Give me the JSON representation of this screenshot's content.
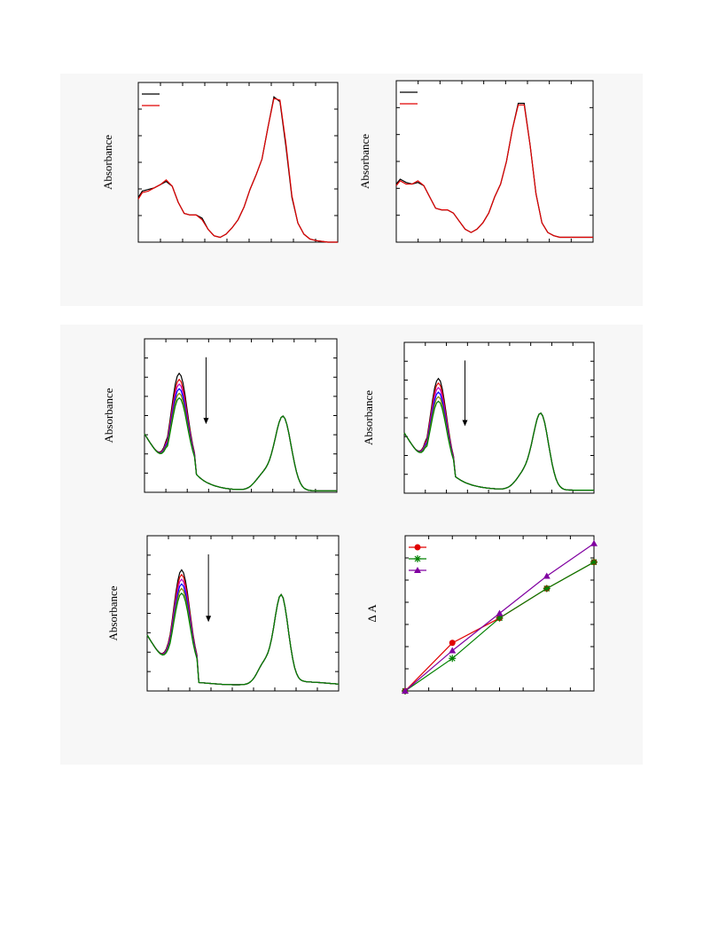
{
  "figure": {
    "background_color": "#f7f7f7",
    "panel_color": "#ffffff"
  },
  "chart_data": [
    {
      "id": "top-left",
      "type": "line",
      "title": "",
      "xlabel": "",
      "ylabel": "Absorbance",
      "xlim": [
        0,
        100
      ],
      "ylim": [
        0,
        1.0
      ],
      "legend": "top-left",
      "series": [
        {
          "color": "#000000",
          "x": [
            0,
            2,
            5,
            8,
            11,
            14,
            17,
            20,
            23,
            26,
            29,
            32,
            35,
            38,
            41,
            44,
            47,
            50,
            53,
            56,
            59,
            62,
            65,
            68,
            71,
            74,
            77,
            80,
            83,
            86,
            89,
            92,
            95,
            98,
            100
          ],
          "y": [
            0.28,
            0.32,
            0.33,
            0.34,
            0.36,
            0.38,
            0.35,
            0.25,
            0.18,
            0.17,
            0.17,
            0.15,
            0.08,
            0.04,
            0.03,
            0.05,
            0.09,
            0.14,
            0.22,
            0.33,
            0.42,
            0.52,
            0.72,
            0.91,
            0.88,
            0.6,
            0.28,
            0.12,
            0.05,
            0.02,
            0.01,
            0.005,
            0.0,
            0.0,
            0.0
          ]
        },
        {
          "color": "#e00000",
          "x": [
            0,
            2,
            5,
            8,
            11,
            14,
            17,
            20,
            23,
            26,
            29,
            32,
            35,
            38,
            41,
            44,
            47,
            50,
            53,
            56,
            59,
            62,
            65,
            68,
            71,
            74,
            77,
            80,
            83,
            86,
            89,
            92,
            95,
            98,
            100
          ],
          "y": [
            0.27,
            0.31,
            0.32,
            0.34,
            0.36,
            0.39,
            0.35,
            0.25,
            0.18,
            0.17,
            0.17,
            0.14,
            0.08,
            0.04,
            0.03,
            0.05,
            0.09,
            0.14,
            0.22,
            0.33,
            0.42,
            0.52,
            0.72,
            0.9,
            0.89,
            0.62,
            0.29,
            0.12,
            0.05,
            0.02,
            0.01,
            0.005,
            0.0,
            0.0,
            0.0
          ]
        }
      ]
    },
    {
      "id": "top-right",
      "type": "line",
      "title": "",
      "xlabel": "",
      "ylabel": "Absorbance",
      "xlim": [
        0,
        100
      ],
      "ylim": [
        0,
        1.0
      ],
      "legend": "top-left",
      "series": [
        {
          "color": "#000000",
          "x": [
            0,
            2,
            5,
            8,
            11,
            14,
            17,
            20,
            23,
            26,
            29,
            32,
            35,
            38,
            41,
            44,
            47,
            50,
            53,
            56,
            59,
            62,
            65,
            68,
            71,
            74,
            77,
            80,
            83,
            86,
            89,
            92,
            95,
            98,
            100
          ],
          "y": [
            0.36,
            0.39,
            0.37,
            0.36,
            0.37,
            0.35,
            0.28,
            0.21,
            0.2,
            0.2,
            0.18,
            0.13,
            0.08,
            0.06,
            0.08,
            0.12,
            0.18,
            0.28,
            0.36,
            0.5,
            0.7,
            0.86,
            0.86,
            0.6,
            0.3,
            0.12,
            0.06,
            0.04,
            0.03,
            0.03,
            0.03,
            0.03,
            0.03,
            0.03,
            0.03
          ]
        },
        {
          "color": "#e00000",
          "x": [
            0,
            2,
            5,
            8,
            11,
            14,
            17,
            20,
            23,
            26,
            29,
            32,
            35,
            38,
            41,
            44,
            47,
            50,
            53,
            56,
            59,
            62,
            65,
            68,
            71,
            74,
            77,
            80,
            83,
            86,
            89,
            92,
            95,
            98,
            100
          ],
          "y": [
            0.35,
            0.38,
            0.36,
            0.36,
            0.38,
            0.35,
            0.28,
            0.21,
            0.2,
            0.2,
            0.18,
            0.13,
            0.08,
            0.06,
            0.08,
            0.12,
            0.18,
            0.28,
            0.36,
            0.5,
            0.7,
            0.85,
            0.85,
            0.6,
            0.3,
            0.12,
            0.06,
            0.04,
            0.03,
            0.03,
            0.03,
            0.03,
            0.03,
            0.03,
            0.03
          ]
        }
      ]
    },
    {
      "id": "mid-left",
      "type": "line",
      "title": "",
      "xlabel": "",
      "ylabel": "Absorbance",
      "xlim": [
        0,
        100
      ],
      "ylim": [
        0,
        1.0
      ],
      "arrow": "down",
      "series": [
        {
          "color": "#000000",
          "y_peak": 0.86
        },
        {
          "color": "#e00000",
          "y_peak": 0.82
        },
        {
          "color": "#c000c0",
          "y_peak": 0.79
        },
        {
          "color": "#0000ff",
          "y_peak": 0.76
        },
        {
          "color": "#808000",
          "y_peak": 0.73
        },
        {
          "color": "#008000",
          "y_peak": 0.7
        }
      ],
      "shape": "mid-left"
    },
    {
      "id": "mid-right",
      "type": "line",
      "title": "",
      "xlabel": "",
      "ylabel": "Absorbance",
      "xlim": [
        0,
        100
      ],
      "ylim": [
        0,
        1.0
      ],
      "arrow": "down",
      "series": [
        {
          "color": "#000000",
          "y_peak": 0.84
        },
        {
          "color": "#e00000",
          "y_peak": 0.81
        },
        {
          "color": "#c000c0",
          "y_peak": 0.78
        },
        {
          "color": "#0000ff",
          "y_peak": 0.75
        },
        {
          "color": "#808000",
          "y_peak": 0.72
        },
        {
          "color": "#008000",
          "y_peak": 0.69
        }
      ],
      "shape": "mid-right"
    },
    {
      "id": "bottom-left",
      "type": "line",
      "title": "",
      "xlabel": "",
      "ylabel": "Absorbance",
      "xlim": [
        0,
        100
      ],
      "ylim": [
        0,
        1.0
      ],
      "arrow": "down",
      "series": [
        {
          "color": "#000000",
          "y_peak": 0.86
        },
        {
          "color": "#e00000",
          "y_peak": 0.83
        },
        {
          "color": "#c000c0",
          "y_peak": 0.8
        },
        {
          "color": "#0000ff",
          "y_peak": 0.77
        },
        {
          "color": "#808000",
          "y_peak": 0.74
        },
        {
          "color": "#008000",
          "y_peak": 0.71
        }
      ],
      "shape": "bottom-left"
    },
    {
      "id": "bottom-right",
      "type": "line",
      "title": "",
      "xlabel": "",
      "ylabel": "Δ A",
      "xlim": [
        0,
        4
      ],
      "ylim": [
        0,
        1.0
      ],
      "legend": "top-left",
      "series": [
        {
          "color": "#e00000",
          "marker": "circle",
          "x": [
            0,
            1,
            2,
            3,
            4
          ],
          "y": [
            0.0,
            0.31,
            0.47,
            0.66,
            0.83
          ]
        },
        {
          "color": "#008000",
          "marker": "star",
          "x": [
            0,
            1,
            2,
            3,
            4
          ],
          "y": [
            0.0,
            0.21,
            0.47,
            0.66,
            0.83
          ]
        },
        {
          "color": "#8000a0",
          "marker": "triangle",
          "x": [
            0,
            1,
            2,
            3,
            4
          ],
          "y": [
            0.0,
            0.26,
            0.5,
            0.74,
            0.95
          ]
        }
      ]
    }
  ]
}
